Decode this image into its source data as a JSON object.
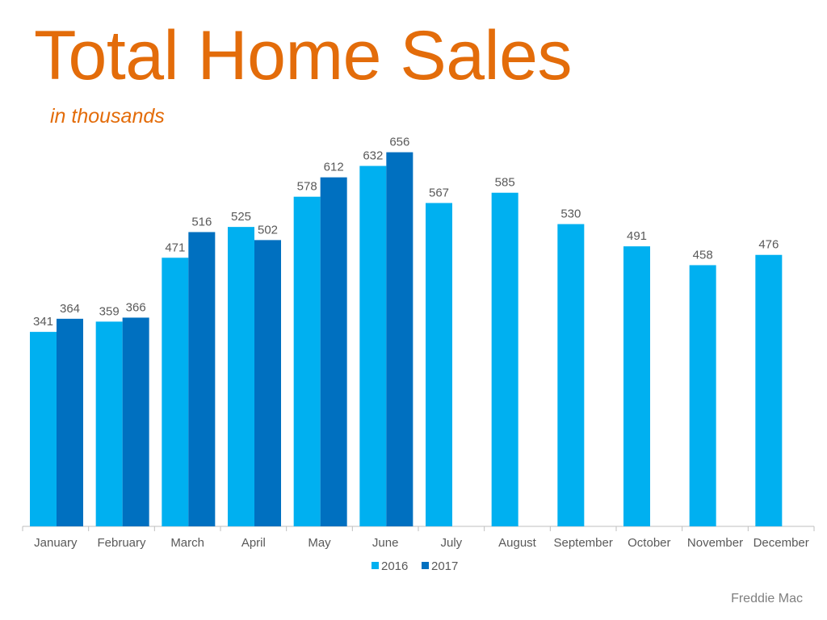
{
  "title": "Total Home Sales",
  "subtitle": "in thousands",
  "source": "Freddie Mac",
  "colors": {
    "accent": "#E36C0A",
    "series_2016": "#00B0F0",
    "series_2017": "#0070C0",
    "axis": "#BFBFBF",
    "label": "#595959"
  },
  "chart_data": {
    "type": "bar",
    "title": "Total Home Sales",
    "subtitle": "in thousands",
    "xlabel": "",
    "ylabel": "",
    "ylim": [
      0,
      700
    ],
    "grid": false,
    "legend_position": "bottom",
    "categories": [
      "January",
      "February",
      "March",
      "April",
      "May",
      "June",
      "July",
      "August",
      "September",
      "October",
      "November",
      "December"
    ],
    "series": [
      {
        "name": "2016",
        "values": [
          341,
          359,
          471,
          525,
          578,
          632,
          567,
          585,
          530,
          491,
          458,
          476
        ]
      },
      {
        "name": "2017",
        "values": [
          364,
          366,
          516,
          502,
          612,
          656,
          null,
          null,
          null,
          null,
          null,
          null
        ]
      }
    ]
  }
}
